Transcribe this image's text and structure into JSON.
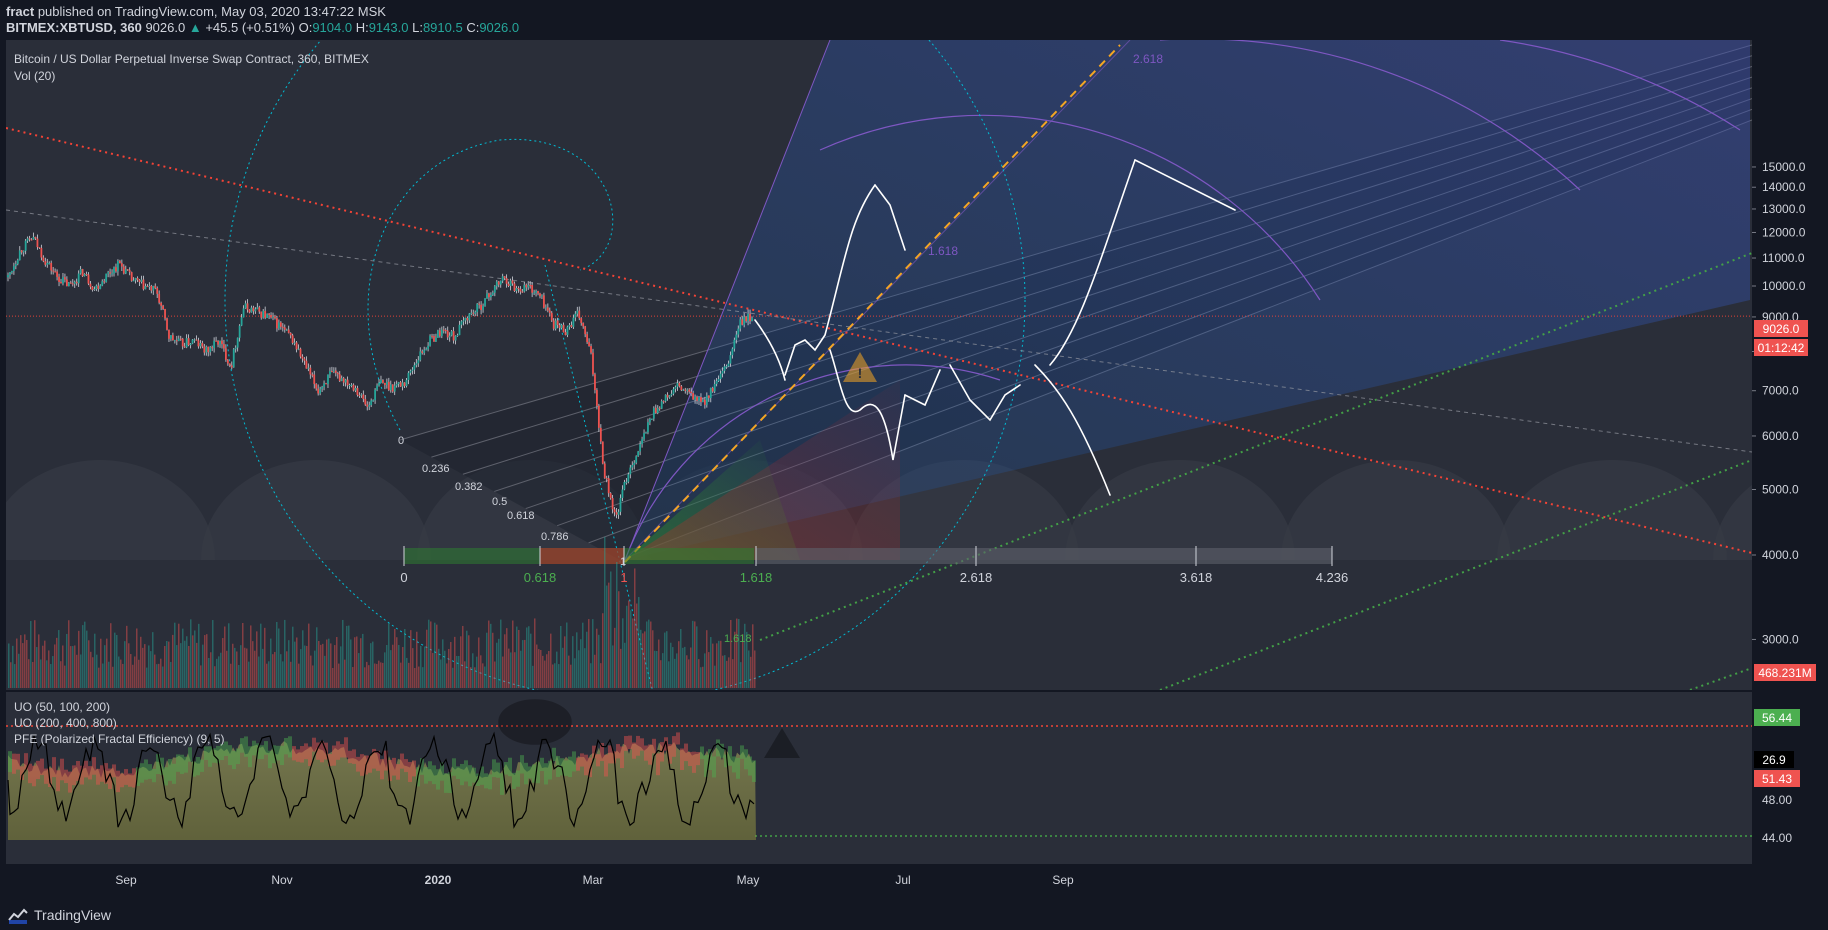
{
  "header": {
    "author": "fract",
    "published": "published on TradingView.com, May 03, 2020 13:47:22 MSK",
    "symbol": "BITMEX:XBTUSD, 360",
    "last": "9026.0",
    "change": "+45.5 (+0.51%)",
    "o_label": "O:",
    "o": "9104.0",
    "h_label": "H:",
    "h": "9143.0",
    "l_label": "L:",
    "l": "8910.5",
    "c_label": "C:",
    "c": "9026.0"
  },
  "main": {
    "title": "Bitcoin / US Dollar Perpetual Inverse Swap Contract, 360, BITMEX",
    "vol_label": "Vol (20)",
    "price_badge": "9026.0",
    "countdown_badge": "01:12:42",
    "volume_badge": "468.231M"
  },
  "osc": {
    "legend": [
      "UO (50, 100, 200)",
      "UO (200, 400, 800)",
      "PFE (Polarized Fractal Efficiency) (9, 5)"
    ],
    "badge_green": "56.44",
    "badge_black": "26.9",
    "badge_red": "51.43",
    "axis": [
      {
        "label": "48.00",
        "value": 48
      },
      {
        "label": "44.00",
        "value": 44
      }
    ]
  },
  "footer": {
    "brand": "TradingView"
  },
  "colors": {
    "background": "#131722",
    "pane": "#2a2e39",
    "up": "#26a69a",
    "down": "#ef5350",
    "fib_green": "#4caf50",
    "fib_purple": "#7e57c2",
    "teal": "#00bcd4",
    "orange_dash": "#f5a623",
    "red_dots": "#f44336",
    "green_dots": "#43a047"
  },
  "chart_data": {
    "type": "candlestick",
    "y_axis": {
      "scale": "log",
      "ticks": [
        3000,
        4000,
        5000,
        6000,
        7000,
        8000,
        9000,
        10000,
        11000,
        12000,
        13000,
        14000,
        15000
      ],
      "tick_labels": [
        "3000.0",
        "4000.0",
        "5000.0",
        "6000.0",
        "7000.0",
        "8000.0",
        "9000.0",
        "10000.0",
        "11000.0",
        "12000.0",
        "13000.0",
        "14000.0",
        "15000.0"
      ]
    },
    "x_axis": {
      "tick_labels": [
        "Sep",
        "Nov",
        "2020",
        "Mar",
        "May",
        "Jul",
        "Sep"
      ]
    },
    "fib_time_labels": [
      "0",
      "0.618",
      "1",
      "1.618",
      "2.618",
      "3.618",
      "4.236"
    ],
    "fib_channel_labels": [
      "0",
      "0.236",
      "0.382",
      "0.5",
      "0.618",
      "0.786",
      "1"
    ],
    "fib_arc_labels": [
      "1.618",
      "2.618"
    ],
    "fib_extension_label": "1.618",
    "price_path": [
      [
        "2019-08",
        10300
      ],
      [
        "2019-08",
        11300
      ],
      [
        "2019-08",
        11800
      ],
      [
        "2019-08",
        10900
      ],
      [
        "2019-08",
        10300
      ],
      [
        "2019-08",
        10000
      ],
      [
        "2019-08",
        10500
      ],
      [
        "2019-08",
        9900
      ],
      [
        "2019-09",
        10400
      ],
      [
        "2019-09",
        10800
      ],
      [
        "2019-09",
        10200
      ],
      [
        "2019-09",
        10000
      ],
      [
        "2019-09",
        9800
      ],
      [
        "2019-09",
        8400
      ],
      [
        "2019-09",
        8200
      ],
      [
        "2019-10",
        8300
      ],
      [
        "2019-10",
        8000
      ],
      [
        "2019-10",
        8300
      ],
      [
        "2019-10",
        7600
      ],
      [
        "2019-10",
        9300
      ],
      [
        "2019-10",
        9200
      ],
      [
        "2019-11",
        9000
      ],
      [
        "2019-11",
        8700
      ],
      [
        "2019-11",
        8300
      ],
      [
        "2019-11",
        7600
      ],
      [
        "2019-11",
        7000
      ],
      [
        "2019-12",
        7400
      ],
      [
        "2019-12",
        7300
      ],
      [
        "2019-12",
        7100
      ],
      [
        "2019-12",
        6600
      ],
      [
        "2019-12",
        7200
      ],
      [
        "2019-12",
        7100
      ],
      [
        "2020-01",
        7200
      ],
      [
        "2020-01",
        7800
      ],
      [
        "2020-01",
        8300
      ],
      [
        "2020-01",
        8600
      ],
      [
        "2020-01",
        8400
      ],
      [
        "2020-01",
        9000
      ],
      [
        "2020-02",
        9300
      ],
      [
        "2020-02",
        9800
      ],
      [
        "2020-02",
        10300
      ],
      [
        "2020-02",
        9900
      ],
      [
        "2020-02",
        10000
      ],
      [
        "2020-02",
        9600
      ],
      [
        "2020-02",
        8800
      ],
      [
        "2020-03",
        8600
      ],
      [
        "2020-03",
        9100
      ],
      [
        "2020-03",
        7900
      ],
      [
        "2020-03",
        5400
      ],
      [
        "2020-03",
        4500
      ],
      [
        "2020-03",
        5300
      ],
      [
        "2020-03",
        5800
      ],
      [
        "2020-03",
        6500
      ],
      [
        "2020-04",
        6800
      ],
      [
        "2020-04",
        7100
      ],
      [
        "2020-04",
        6900
      ],
      [
        "2020-04",
        6700
      ],
      [
        "2020-04",
        7100
      ],
      [
        "2020-04",
        7600
      ],
      [
        "2020-04",
        8800
      ],
      [
        "2020-05",
        9026
      ]
    ]
  }
}
